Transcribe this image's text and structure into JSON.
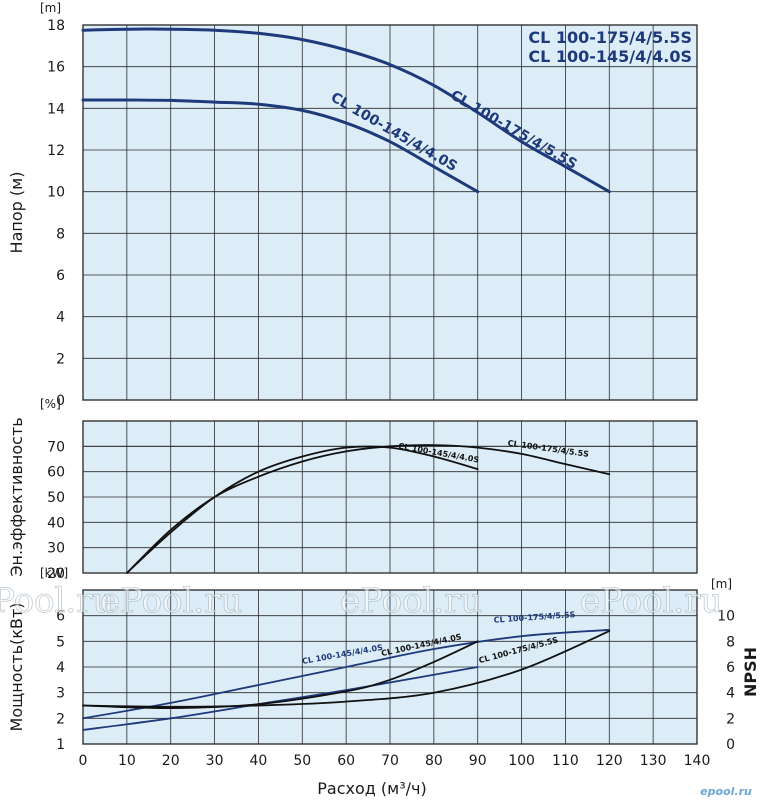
{
  "colors": {
    "blue": "#1f3a7a",
    "black": "#111111",
    "plot_bg": "#dcedf7"
  },
  "watermark": "ePool.ru",
  "logo": "epool.ru",
  "legend": [
    "CL 100-175/4/5.5S",
    "CL 100-145/4/4.0S"
  ],
  "chart_data": [
    {
      "type": "line",
      "id": "head",
      "ylabel": "Напор (м)",
      "yunit": "[m]",
      "ylim": [
        0,
        18
      ],
      "yticks": [
        0,
        2,
        4,
        6,
        8,
        10,
        12,
        14,
        16,
        18
      ],
      "xlim": [
        0,
        140
      ],
      "grid": true,
      "series": [
        {
          "name": "CL 100-175/4/5.5S",
          "color": "blue",
          "label_size": "big",
          "x": [
            0,
            10,
            20,
            30,
            40,
            50,
            60,
            70,
            80,
            90,
            100,
            110,
            120
          ],
          "y": [
            17.75,
            17.8,
            17.8,
            17.75,
            17.6,
            17.3,
            16.8,
            16.1,
            15.1,
            13.8,
            12.4,
            11.2,
            10.0
          ]
        },
        {
          "name": "CL 100-145/4/4.0S",
          "color": "blue",
          "label_size": "big",
          "x": [
            0,
            10,
            20,
            30,
            40,
            50,
            60,
            70,
            80,
            90
          ],
          "y": [
            14.4,
            14.4,
            14.38,
            14.3,
            14.2,
            13.9,
            13.3,
            12.4,
            11.2,
            10.0
          ]
        }
      ]
    },
    {
      "type": "line",
      "id": "efficiency",
      "ylabel": "Эн.эффективность",
      "yunit": "[%]",
      "ylim": [
        20,
        80
      ],
      "yticks": [
        20,
        30,
        40,
        50,
        60,
        70
      ],
      "xlim": [
        0,
        140
      ],
      "grid": true,
      "series": [
        {
          "name": "CL 100-175/4/5.5S",
          "color": "black",
          "label_size": "small",
          "x": [
            10,
            20,
            30,
            40,
            50,
            60,
            70,
            80,
            90,
            100,
            110,
            120
          ],
          "y": [
            20,
            37,
            50,
            58,
            64,
            68,
            70,
            70.5,
            69.5,
            67,
            63,
            59
          ]
        },
        {
          "name": "CL 100-145/4/4.0S",
          "color": "black",
          "label_size": "small",
          "x": [
            10,
            20,
            30,
            40,
            50,
            60,
            70,
            80,
            90
          ],
          "y": [
            20,
            36,
            50,
            60,
            66,
            69.5,
            69.5,
            66,
            61
          ]
        }
      ]
    },
    {
      "type": "line",
      "id": "power_npsh",
      "ylabel": "Мощность(кВт)",
      "yunit": "[kW]",
      "ylim": [
        1,
        7
      ],
      "yticks": [
        1,
        2,
        3,
        4,
        5,
        6
      ],
      "y2label": "NPSH",
      "y2unit": "[m]",
      "y2lim": [
        0,
        12
      ],
      "y2ticks": [
        0,
        2,
        4,
        6,
        8,
        10
      ],
      "xlabel": "Расход (м³/ч)",
      "xlim": [
        0,
        140
      ],
      "xticks": [
        0,
        10,
        20,
        30,
        40,
        50,
        60,
        70,
        80,
        90,
        100,
        110,
        120,
        130,
        140
      ],
      "grid": true,
      "series": [
        {
          "name": "CL 100-175/4/5.5S",
          "color": "blue",
          "label_size": "small",
          "x": [
            0,
            20,
            40,
            60,
            80,
            100,
            120
          ],
          "y": [
            2.0,
            2.6,
            3.3,
            4.0,
            4.7,
            5.2,
            5.45
          ]
        },
        {
          "name": "CL 100-145/4/4.0S",
          "color": "blue",
          "label_size": "small",
          "x": [
            0,
            20,
            40,
            60,
            80,
            90
          ],
          "y": [
            1.55,
            2.0,
            2.55,
            3.1,
            3.7,
            4.0
          ]
        },
        {
          "name": "CL 100-175/4/5.5S",
          "color": "black",
          "label_size": "small",
          "x": [
            0,
            20,
            40,
            60,
            80,
            100,
            120
          ],
          "y": [
            2.5,
            2.45,
            2.5,
            2.65,
            3.0,
            3.9,
            5.4
          ]
        },
        {
          "name": "CL 100-145/4/4.0S",
          "color": "black",
          "label_size": "small",
          "x": [
            0,
            20,
            40,
            60,
            70,
            80,
            90
          ],
          "y": [
            2.5,
            2.4,
            2.55,
            3.05,
            3.5,
            4.2,
            5.0
          ]
        }
      ]
    }
  ]
}
